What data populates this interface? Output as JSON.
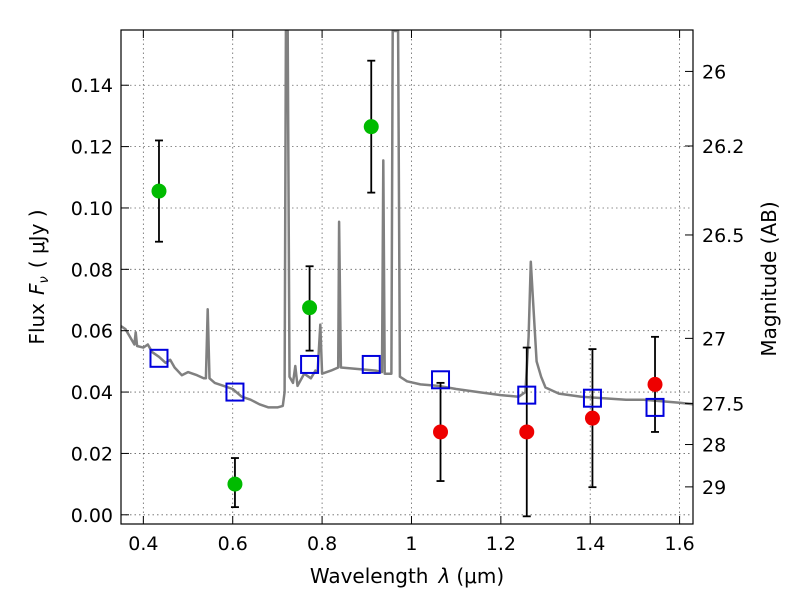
{
  "chart_data": {
    "type": "scatter",
    "xlabel_prefix": "Wavelength",
    "xlabel_var": "λ",
    "xlabel_unit": "(μm)",
    "ylabel_prefix": "Flux",
    "ylabel_var": "F",
    "ylabel_sub": "ν",
    "ylabel_unit": "( μJy )",
    "y2label": "Magnitude (AB)",
    "xlim": [
      0.35,
      1.63
    ],
    "ylim": [
      -0.003,
      0.158
    ],
    "grid": true,
    "xticks": [
      0.4,
      0.6,
      0.8,
      1.0,
      1.2,
      1.4,
      1.6
    ],
    "xtick_labels": [
      "0.4",
      "0.6",
      "0.8",
      "1",
      "1.2",
      "1.4",
      "1.6"
    ],
    "yticks": [
      0.0,
      0.02,
      0.04,
      0.06,
      0.08,
      0.1,
      0.12,
      0.14
    ],
    "ytick_labels": [
      "0.00",
      "0.02",
      "0.04",
      "0.06",
      "0.08",
      "0.10",
      "0.12",
      "0.14"
    ],
    "y2ticks": [
      {
        "label": "26",
        "flux": 0.1445
      },
      {
        "label": "26.2",
        "flux": 0.1202
      },
      {
        "label": "26.5",
        "flux": 0.0912
      },
      {
        "label": "27",
        "flux": 0.0575
      },
      {
        "label": "27.5",
        "flux": 0.0363
      },
      {
        "label": "28",
        "flux": 0.0229
      },
      {
        "label": "29",
        "flux": 0.0091
      }
    ],
    "colors": {
      "spectrum": "#808080",
      "green_points": "#00bb00",
      "red_points": "#ee0000",
      "model_squares": "#0000dd",
      "error_bars": "#000000"
    },
    "series": [
      {
        "marker": "circle",
        "color": "#00bb00",
        "points": [
          {
            "x": 0.435,
            "y": 0.1055,
            "ylo": 0.089,
            "yhi": 0.122
          },
          {
            "x": 0.605,
            "y": 0.01,
            "ylo": 0.0025,
            "yhi": 0.0185
          },
          {
            "x": 0.772,
            "y": 0.0675,
            "ylo": 0.0535,
            "yhi": 0.081
          },
          {
            "x": 0.91,
            "y": 0.1265,
            "ylo": 0.105,
            "yhi": 0.148
          }
        ]
      },
      {
        "marker": "circle",
        "color": "#ee0000",
        "points": [
          {
            "x": 1.065,
            "y": 0.027,
            "ylo": 0.011,
            "yhi": 0.043
          },
          {
            "x": 1.258,
            "y": 0.027,
            "ylo": -0.0005,
            "yhi": 0.0545
          },
          {
            "x": 1.405,
            "y": 0.0315,
            "ylo": 0.009,
            "yhi": 0.054
          },
          {
            "x": 1.545,
            "y": 0.0425,
            "ylo": 0.027,
            "yhi": 0.058
          }
        ]
      },
      {
        "marker": "square",
        "color": "#0000dd",
        "points": [
          {
            "x": 0.435,
            "y": 0.051
          },
          {
            "x": 0.605,
            "y": 0.04
          },
          {
            "x": 0.772,
            "y": 0.049
          },
          {
            "x": 0.91,
            "y": 0.049
          },
          {
            "x": 1.065,
            "y": 0.044
          },
          {
            "x": 1.258,
            "y": 0.039
          },
          {
            "x": 1.405,
            "y": 0.038
          },
          {
            "x": 1.545,
            "y": 0.035
          }
        ]
      },
      {
        "marker": "line",
        "color": "#808080",
        "points": [
          {
            "x": 0.35,
            "y": 0.0615
          },
          {
            "x": 0.36,
            "y": 0.0605
          },
          {
            "x": 0.37,
            "y": 0.058
          },
          {
            "x": 0.38,
            "y": 0.0555
          },
          {
            "x": 0.383,
            "y": 0.0595
          },
          {
            "x": 0.386,
            "y": 0.055
          },
          {
            "x": 0.4,
            "y": 0.0545
          },
          {
            "x": 0.41,
            "y": 0.0555
          },
          {
            "x": 0.42,
            "y": 0.053
          },
          {
            "x": 0.435,
            "y": 0.0515
          },
          {
            "x": 0.45,
            "y": 0.0495
          },
          {
            "x": 0.46,
            "y": 0.0505
          },
          {
            "x": 0.47,
            "y": 0.048
          },
          {
            "x": 0.486,
            "y": 0.0455
          },
          {
            "x": 0.5,
            "y": 0.0465
          },
          {
            "x": 0.52,
            "y": 0.0455
          },
          {
            "x": 0.535,
            "y": 0.0445
          },
          {
            "x": 0.54,
            "y": 0.0445
          },
          {
            "x": 0.544,
            "y": 0.067
          },
          {
            "x": 0.548,
            "y": 0.0445
          },
          {
            "x": 0.56,
            "y": 0.043
          },
          {
            "x": 0.58,
            "y": 0.042
          },
          {
            "x": 0.6,
            "y": 0.041
          },
          {
            "x": 0.62,
            "y": 0.0385
          },
          {
            "x": 0.64,
            "y": 0.0375
          },
          {
            "x": 0.66,
            "y": 0.036
          },
          {
            "x": 0.68,
            "y": 0.035
          },
          {
            "x": 0.7,
            "y": 0.035
          },
          {
            "x": 0.712,
            "y": 0.0355
          },
          {
            "x": 0.716,
            "y": 0.04
          },
          {
            "x": 0.719,
            "y": 0.158
          },
          {
            "x": 0.723,
            "y": 0.158
          },
          {
            "x": 0.727,
            "y": 0.045
          },
          {
            "x": 0.735,
            "y": 0.043
          },
          {
            "x": 0.74,
            "y": 0.0485
          },
          {
            "x": 0.745,
            "y": 0.042
          },
          {
            "x": 0.76,
            "y": 0.046
          },
          {
            "x": 0.775,
            "y": 0.0445
          },
          {
            "x": 0.785,
            "y": 0.047
          },
          {
            "x": 0.79,
            "y": 0.0465
          },
          {
            "x": 0.796,
            "y": 0.062
          },
          {
            "x": 0.8,
            "y": 0.046
          },
          {
            "x": 0.82,
            "y": 0.047
          },
          {
            "x": 0.836,
            "y": 0.048
          },
          {
            "x": 0.838,
            "y": 0.0955
          },
          {
            "x": 0.842,
            "y": 0.048
          },
          {
            "x": 0.88,
            "y": 0.0475
          },
          {
            "x": 0.92,
            "y": 0.047
          },
          {
            "x": 0.934,
            "y": 0.0465
          },
          {
            "x": 0.937,
            "y": 0.1155
          },
          {
            "x": 0.94,
            "y": 0.046
          },
          {
            "x": 0.955,
            "y": 0.046
          },
          {
            "x": 0.958,
            "y": 0.158
          },
          {
            "x": 0.962,
            "y": 0.158
          },
          {
            "x": 0.966,
            "y": 0.158
          },
          {
            "x": 0.97,
            "y": 0.158
          },
          {
            "x": 0.974,
            "y": 0.045
          },
          {
            "x": 0.99,
            "y": 0.0435
          },
          {
            "x": 1.02,
            "y": 0.0425
          },
          {
            "x": 1.06,
            "y": 0.042
          },
          {
            "x": 1.1,
            "y": 0.041
          },
          {
            "x": 1.15,
            "y": 0.04
          },
          {
            "x": 1.2,
            "y": 0.039
          },
          {
            "x": 1.24,
            "y": 0.0385
          },
          {
            "x": 1.255,
            "y": 0.04
          },
          {
            "x": 1.262,
            "y": 0.058
          },
          {
            "x": 1.267,
            "y": 0.0825
          },
          {
            "x": 1.272,
            "y": 0.07
          },
          {
            "x": 1.28,
            "y": 0.05
          },
          {
            "x": 1.29,
            "y": 0.045
          },
          {
            "x": 1.3,
            "y": 0.0415
          },
          {
            "x": 1.33,
            "y": 0.0395
          },
          {
            "x": 1.38,
            "y": 0.0385
          },
          {
            "x": 1.43,
            "y": 0.038
          },
          {
            "x": 1.48,
            "y": 0.0375
          },
          {
            "x": 1.52,
            "y": 0.0375
          },
          {
            "x": 1.56,
            "y": 0.037
          },
          {
            "x": 1.6,
            "y": 0.0365
          },
          {
            "x": 1.63,
            "y": 0.036
          }
        ]
      }
    ]
  }
}
